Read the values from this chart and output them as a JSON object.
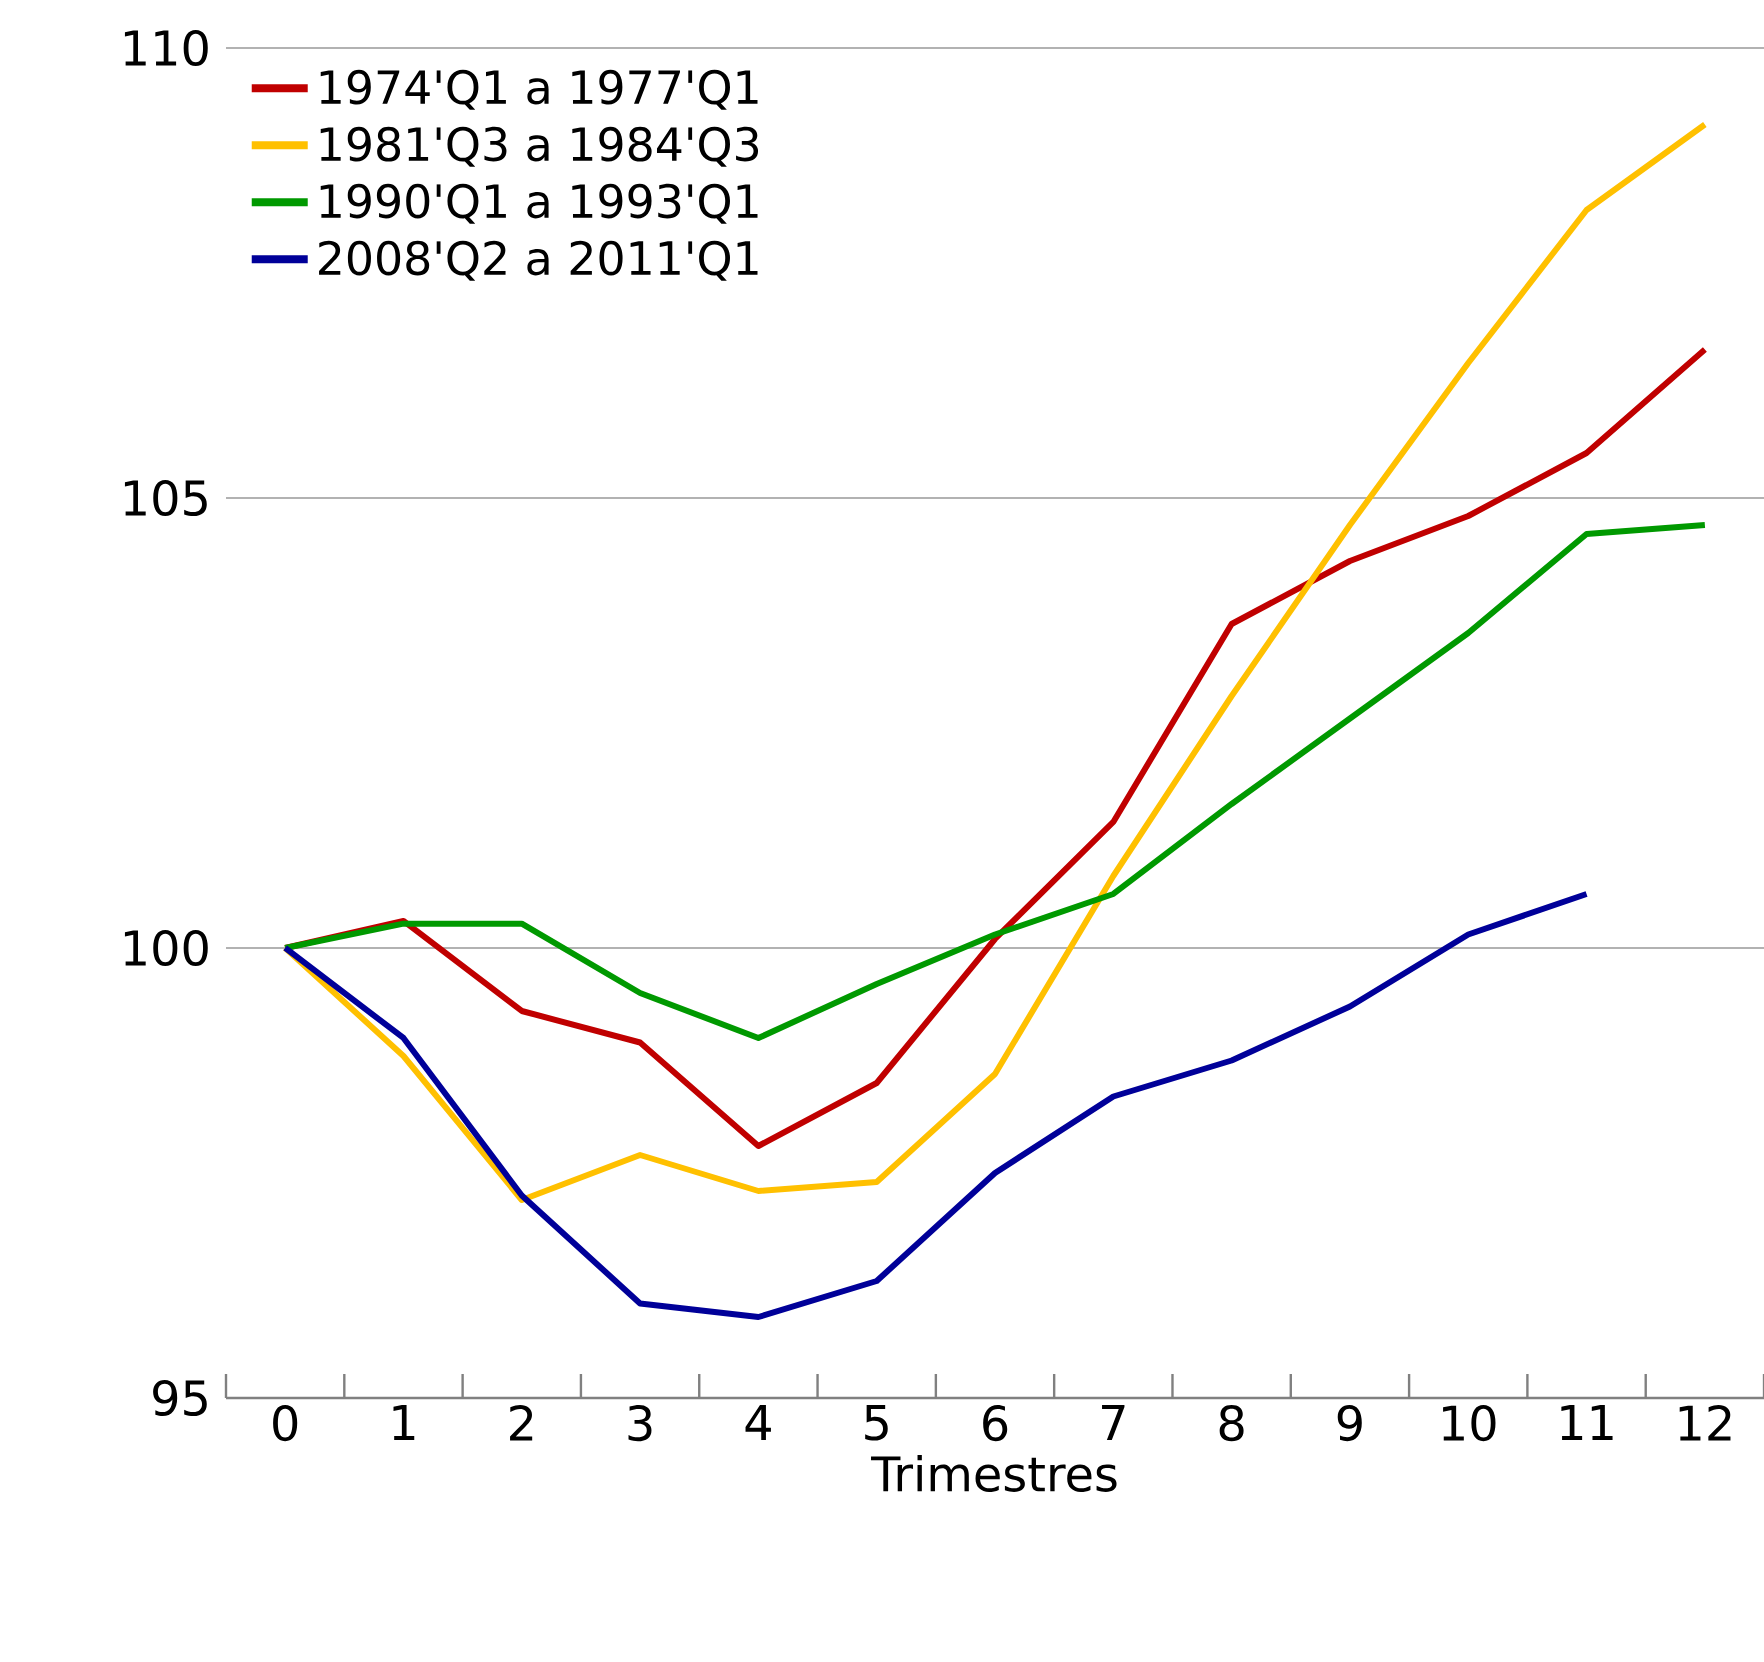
{
  "chart_data": {
    "type": "line",
    "xlabel": "Trimestres",
    "categories": [
      "0",
      "1",
      "2",
      "3",
      "4",
      "5",
      "6",
      "7",
      "8",
      "9",
      "10",
      "11",
      "12"
    ],
    "series": [
      {
        "name": "1974'Q1 a 1977'Q1",
        "color": "#c00000",
        "values": [
          100,
          100.3,
          99.3,
          98.95,
          97.8,
          98.5,
          100.1,
          101.4,
          103.6,
          104.3,
          104.8,
          105.5,
          106.65
        ]
      },
      {
        "name": "1981'Q3 a 1984'Q3",
        "color": "#ffc000",
        "values": [
          100,
          98.8,
          97.2,
          97.7,
          97.3,
          97.4,
          98.6,
          100.8,
          102.8,
          104.7,
          106.5,
          108.2,
          109.15
        ]
      },
      {
        "name": "1990'Q1 a 1993'Q1",
        "color": "#009900",
        "values": [
          100,
          100.27,
          100.27,
          99.5,
          99.0,
          99.6,
          100.15,
          100.6,
          101.6,
          102.55,
          103.5,
          104.6,
          104.7
        ]
      },
      {
        "name": "2008'Q2 a 2011'Q1",
        "color": "#000099",
        "values": [
          100,
          99.0,
          97.25,
          96.05,
          95.9,
          96.3,
          97.5,
          98.35,
          98.75,
          99.35,
          100.15,
          100.6,
          null
        ]
      }
    ],
    "ylim": [
      95,
      110
    ],
    "yticks": [
      95,
      100,
      105,
      110
    ],
    "grid": "y",
    "legend": "top left"
  }
}
